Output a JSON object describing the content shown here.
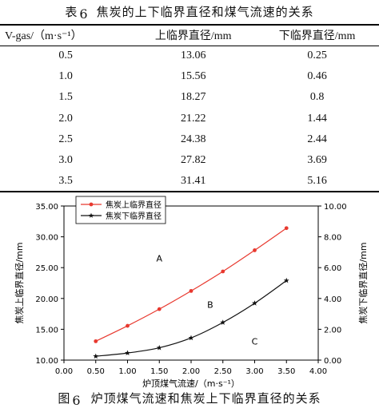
{
  "table": {
    "title_prefix": "表",
    "title_number": "6",
    "title_text": "焦炭的上下临界直径和煤气流速的关系",
    "headers": [
      "V-gas/（m·s⁻¹）",
      "上临界直径/mm",
      "下临界直径/mm"
    ],
    "rows": [
      [
        "0.5",
        "13.06",
        "0.25"
      ],
      [
        "1.0",
        "15.56",
        "0.46"
      ],
      [
        "1.5",
        "18.27",
        "0.8"
      ],
      [
        "2.0",
        "21.22",
        "1.44"
      ],
      [
        "2.5",
        "24.38",
        "2.44"
      ],
      [
        "3.0",
        "27.82",
        "3.69"
      ],
      [
        "3.5",
        "31.41",
        "5.16"
      ]
    ]
  },
  "figure": {
    "caption_prefix": "图",
    "caption_number": "6",
    "caption_text": "炉顶煤气流速和焦炭上下临界直径的关系"
  },
  "chart_data": {
    "type": "line",
    "x": [
      0.5,
      1.0,
      1.5,
      2.0,
      2.5,
      3.0,
      3.5
    ],
    "xlim": [
      0.0,
      4.0
    ],
    "xticks": [
      "0.00",
      "0.50",
      "1.00",
      "1.50",
      "2.00",
      "2.50",
      "3.00",
      "3.50",
      "4.00"
    ],
    "xlabel": "炉顶煤气流速/（m·s⁻¹）",
    "ylabel": "焦炭上临界直径/mm",
    "ylabel_right": "焦炭下临界直径/mm",
    "ylim": [
      10.0,
      35.0
    ],
    "ylim_right": [
      0.0,
      10.0
    ],
    "yticks": [
      "10.00",
      "15.00",
      "20.00",
      "25.00",
      "30.00",
      "35.00"
    ],
    "yticks_right": [
      "0.00",
      "2.00",
      "4.00",
      "6.00",
      "8.00",
      "10.00"
    ],
    "series": [
      {
        "name": "焦炭上临界直径",
        "axis": "left",
        "marker": "dot",
        "color": "#e8392f",
        "values": [
          13.06,
          15.56,
          18.27,
          21.22,
          24.38,
          27.82,
          31.41
        ]
      },
      {
        "name": "焦炭下临界直径",
        "axis": "right",
        "marker": "star",
        "color": "#111111",
        "values": [
          0.25,
          0.46,
          0.8,
          1.44,
          2.44,
          3.69,
          5.16
        ]
      }
    ],
    "annotations": [
      {
        "text": "A",
        "x": 1.5,
        "y": 26.0
      },
      {
        "text": "B",
        "x": 2.3,
        "y": 18.5
      },
      {
        "text": "C",
        "x": 3.0,
        "y": 12.5
      }
    ],
    "legend_position": "top-left",
    "grid": false
  }
}
